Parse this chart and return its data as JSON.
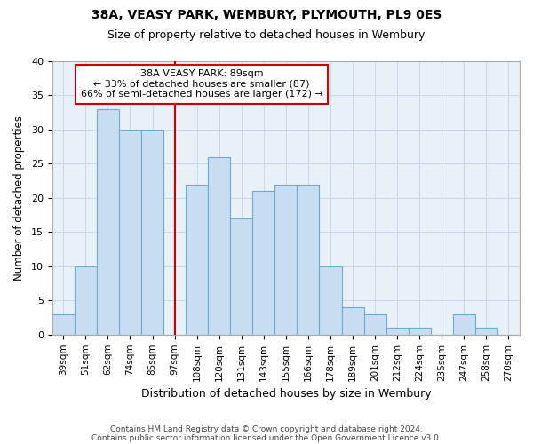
{
  "title1": "38A, VEASY PARK, WEMBURY, PLYMOUTH, PL9 0ES",
  "title2": "Size of property relative to detached houses in Wembury",
  "xlabel": "Distribution of detached houses by size in Wembury",
  "ylabel": "Number of detached properties",
  "categories": [
    "39sqm",
    "51sqm",
    "62sqm",
    "74sqm",
    "85sqm",
    "97sqm",
    "108sqm",
    "120sqm",
    "131sqm",
    "143sqm",
    "155sqm",
    "166sqm",
    "178sqm",
    "189sqm",
    "201sqm",
    "212sqm",
    "224sqm",
    "235sqm",
    "247sqm",
    "258sqm",
    "270sqm"
  ],
  "values": [
    3,
    10,
    33,
    30,
    30,
    0,
    22,
    26,
    17,
    21,
    22,
    22,
    10,
    4,
    3,
    1,
    1,
    0,
    3,
    1,
    0
  ],
  "bar_color": "#c9ddf2",
  "bar_edge_color": "#6aaad4",
  "grid_color": "#c8d8ea",
  "plot_bg_color": "#e8f0f8",
  "fig_bg_color": "#ffffff",
  "property_label": "38A VEASY PARK: 89sqm",
  "annotation_line1": "← 33% of detached houses are smaller (87)",
  "annotation_line2": "66% of semi-detached houses are larger (172) →",
  "annotation_box_color": "#ffffff",
  "annotation_box_edge": "#cc0000",
  "property_line_color": "#cc0000",
  "property_line_x": 5.0,
  "ylim": [
    0,
    40
  ],
  "yticks": [
    0,
    5,
    10,
    15,
    20,
    25,
    30,
    35,
    40
  ],
  "footnote1": "Contains HM Land Registry data © Crown copyright and database right 2024.",
  "footnote2": "Contains public sector information licensed under the Open Government Licence v3.0."
}
